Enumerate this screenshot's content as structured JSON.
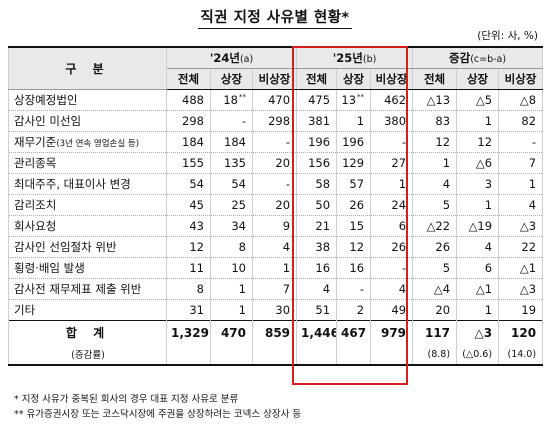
{
  "title": "직권 지정 사유별 현황*",
  "unit": "(단위: 사, %)",
  "header": {
    "category": "구 분",
    "groups": [
      {
        "label": "'24년",
        "sub": "(a)"
      },
      {
        "label": "'25년",
        "sub": "(b)"
      },
      {
        "label": "증감",
        "sub": "(c=b-a)"
      }
    ],
    "columns": [
      "전체",
      "상장",
      "비상장",
      "전체",
      "상장",
      "비상장",
      "전체",
      "상장",
      "비상장"
    ]
  },
  "rows": [
    {
      "label": "상장예정법인",
      "note": "",
      "values": [
        "488",
        "18",
        "470",
        "475",
        "13",
        "462",
        "△13",
        "△5",
        "△8"
      ],
      "sups": [
        "",
        "**",
        "",
        "",
        "**",
        "",
        "",
        "",
        ""
      ]
    },
    {
      "label": "감사인 미선임",
      "note": "",
      "values": [
        "298",
        "-",
        "298",
        "381",
        "1",
        "380",
        "83",
        "1",
        "82"
      ]
    },
    {
      "label": "재무기준",
      "note": "(3년 연속 영업손실 등)",
      "values": [
        "184",
        "184",
        "-",
        "196",
        "196",
        "-",
        "12",
        "12",
        "-"
      ]
    },
    {
      "label": "관리종목",
      "note": "",
      "values": [
        "155",
        "135",
        "20",
        "156",
        "129",
        "27",
        "1",
        "△6",
        "7"
      ]
    },
    {
      "label": "최대주주, 대표이사 변경",
      "note": "",
      "values": [
        "54",
        "54",
        "-",
        "58",
        "57",
        "1",
        "4",
        "3",
        "1"
      ]
    },
    {
      "label": "감리조치",
      "note": "",
      "values": [
        "45",
        "25",
        "20",
        "50",
        "26",
        "24",
        "5",
        "1",
        "4"
      ]
    },
    {
      "label": "회사요청",
      "note": "",
      "values": [
        "43",
        "34",
        "9",
        "21",
        "15",
        "6",
        "△22",
        "△19",
        "△3"
      ]
    },
    {
      "label": "감사인 선임절차 위반",
      "note": "",
      "values": [
        "12",
        "8",
        "4",
        "38",
        "12",
        "26",
        "26",
        "4",
        "22"
      ]
    },
    {
      "label": "횡령·배임 발생",
      "note": "",
      "values": [
        "11",
        "10",
        "1",
        "16",
        "16",
        "-",
        "5",
        "6",
        "△1"
      ]
    },
    {
      "label": "감사전 재무제표 제출 위반",
      "note": "",
      "values": [
        "8",
        "1",
        "7",
        "4",
        "-",
        "4",
        "△4",
        "△1",
        "△3"
      ]
    },
    {
      "label": "기타",
      "note": "",
      "values": [
        "31",
        "1",
        "30",
        "51",
        "2",
        "49",
        "20",
        "1",
        "19"
      ]
    }
  ],
  "total": {
    "label": "합 계",
    "values": [
      "1,329",
      "470",
      "859",
      "1,446",
      "467",
      "979",
      "117",
      "△3",
      "120"
    ]
  },
  "rate": {
    "label": "(증감률)",
    "values": [
      "",
      "",
      "",
      "",
      "",
      "",
      "(8.8)",
      "(△0.6)",
      "(14.0)"
    ]
  },
  "notes": [
    "*  지정 사유가 중복된 회사의 경우 대표 지정 사유로 분류",
    "** 유가증권시장 또는 코스닥시장에 주권을 상장하려는 코넥스 상장사 등"
  ],
  "colors": {
    "highlight": "#d61e1e",
    "header_bg": "#e9e9e9"
  }
}
